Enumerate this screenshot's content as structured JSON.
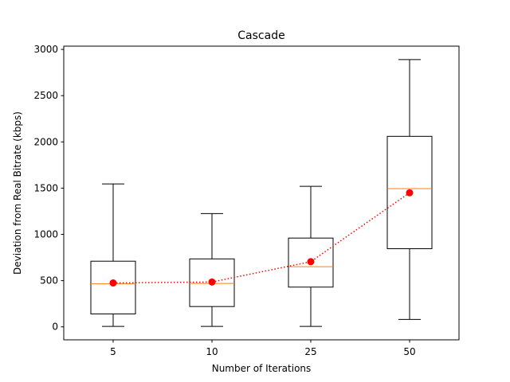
{
  "chart_data": {
    "type": "box",
    "title": "Cascade",
    "xlabel": "Number of Iterations",
    "ylabel": "Deviation from Real Bitrate (kbps)",
    "ylim": [
      -140,
      3035
    ],
    "yticks": [
      0,
      500,
      1000,
      1500,
      2000,
      2500,
      3000
    ],
    "grid": false,
    "categories": [
      "5",
      "10",
      "25",
      "50"
    ],
    "boxes": [
      {
        "category": "5",
        "whisker_low": 5,
        "q1": 140,
        "median": 465,
        "q3": 710,
        "whisker_high": 1545
      },
      {
        "category": "10",
        "whisker_low": 5,
        "q1": 220,
        "median": 470,
        "q3": 735,
        "whisker_high": 1225
      },
      {
        "category": "25",
        "whisker_low": 5,
        "q1": 430,
        "median": 650,
        "q3": 960,
        "whisker_high": 1520
      },
      {
        "category": "50",
        "whisker_low": 80,
        "q1": 845,
        "median": 1495,
        "q3": 2060,
        "whisker_high": 2890
      }
    ],
    "mean_line": {
      "values": [
        475,
        485,
        705,
        1450
      ],
      "style": "dotted",
      "marker": "circle"
    },
    "colors": {
      "box": "#000000",
      "median": "#ff7f0e",
      "mean": "#ff0000"
    }
  }
}
